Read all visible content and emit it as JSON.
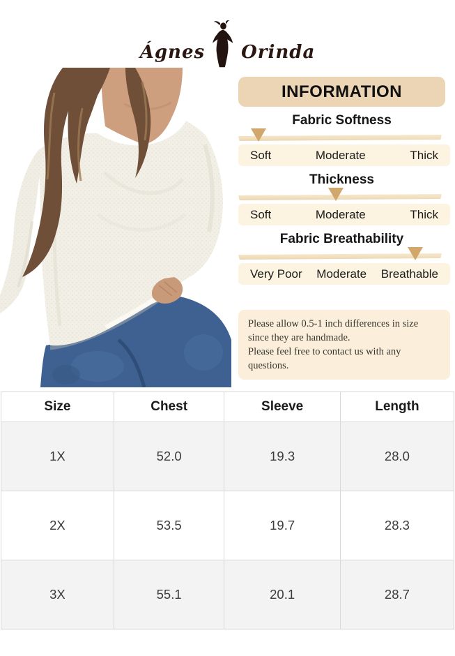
{
  "brand": {
    "first": "Ágnes",
    "last": "Orinda"
  },
  "info": {
    "title": "INFORMATION",
    "sections": [
      {
        "title": "Fabric Softness",
        "labels": [
          "Soft",
          "Moderate",
          "Thick"
        ],
        "arrow_pct": 10
      },
      {
        "title": "Thickness",
        "labels": [
          "Soft",
          "Moderate",
          "Thick"
        ],
        "arrow_pct": 48
      },
      {
        "title": "Fabric Breathability",
        "labels": [
          "Very Poor",
          "Moderate",
          "Breathable"
        ],
        "arrow_pct": 87
      }
    ],
    "note": {
      "line1": "Please allow 0.5-1 inch differences in size since they are handmade.",
      "line2": "Please feel free to contact us with any questions."
    }
  },
  "size_table": {
    "headers": [
      "Size",
      "Chest",
      "Sleeve",
      "Length"
    ],
    "rows": [
      [
        "1X",
        "52.0",
        "19.3",
        "28.0"
      ],
      [
        "2X",
        "53.5",
        "19.7",
        "28.3"
      ],
      [
        "3X",
        "55.1",
        "20.1",
        "28.7"
      ]
    ]
  },
  "colors": {
    "header_bg": "#EBD5B4",
    "scale_row_bg": "#FCF3E0",
    "arrow": "#D2A76C",
    "note_bg": "#FBEFDB",
    "table_stripe": "#F3F3F3",
    "table_border": "#D8D8D8"
  }
}
